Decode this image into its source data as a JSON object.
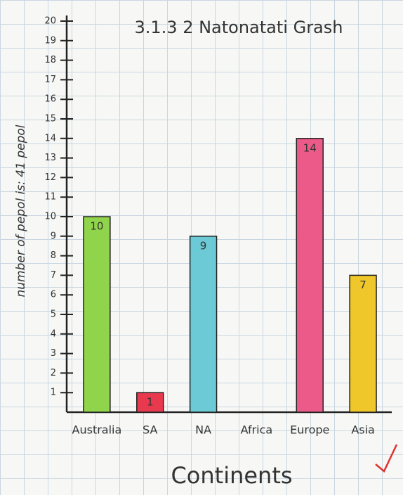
{
  "chart_data": {
    "type": "bar",
    "title": "3.1.3 2 Natonatati Grash",
    "y_label": "number of pepol is: 41 pepol",
    "x_label": "Continents",
    "categories": [
      "Australia",
      "SA",
      "NA",
      "Africa",
      "Europe",
      "Asia"
    ],
    "values": [
      10,
      1,
      9,
      0,
      14,
      7
    ],
    "colors": [
      "#8fd44a",
      "#e8394f",
      "#6cc9d6",
      "#cccccc",
      "#ec5a8a",
      "#f0c72a"
    ],
    "ylim": [
      0,
      20
    ],
    "yticks": [
      1,
      2,
      3,
      4,
      5,
      6,
      7,
      8,
      9,
      10,
      11,
      12,
      13,
      14,
      15,
      16,
      17,
      18,
      19,
      20
    ],
    "grid": false
  }
}
